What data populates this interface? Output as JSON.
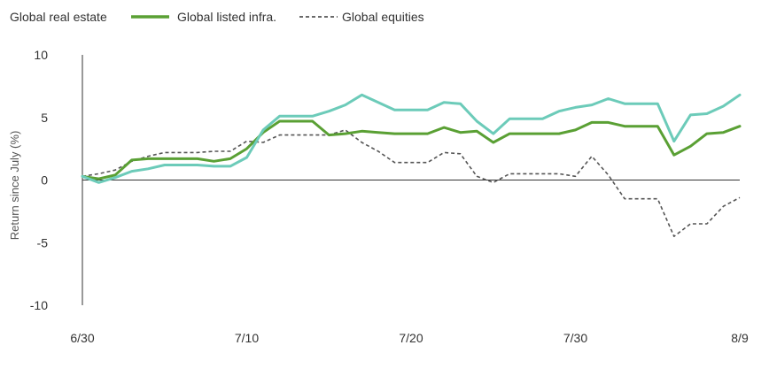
{
  "chart_data": {
    "type": "line",
    "ylabel": "Return since July (%)",
    "ylim": [
      -10,
      10
    ],
    "yticks": [
      10,
      5,
      0,
      -5,
      -10
    ],
    "x_range": [
      "6/30",
      "8/9"
    ],
    "xticks": [
      "6/30",
      "7/10",
      "7/20",
      "7/30",
      "8/9"
    ],
    "legend_position": "top-left",
    "grid": false,
    "zero_line": true,
    "x": [
      "6/30",
      "7/1",
      "7/2",
      "7/3",
      "7/4",
      "7/5",
      "7/6",
      "7/7",
      "7/8",
      "7/9",
      "7/10",
      "7/11",
      "7/12",
      "7/13",
      "7/14",
      "7/15",
      "7/16",
      "7/17",
      "7/18",
      "7/19",
      "7/20",
      "7/21",
      "7/22",
      "7/23",
      "7/24",
      "7/25",
      "7/26",
      "7/27",
      "7/28",
      "7/29",
      "7/30",
      "7/31",
      "8/1",
      "8/2",
      "8/3",
      "8/4",
      "8/5",
      "8/6",
      "8/7",
      "8/8",
      "8/9"
    ],
    "series": [
      {
        "name": "Global real estate",
        "color": "#6ccbb9",
        "dash": "solid",
        "values": [
          0.3,
          -0.2,
          0.2,
          0.7,
          0.9,
          1.2,
          1.2,
          1.2,
          1.1,
          1.1,
          1.8,
          4.0,
          5.1,
          5.1,
          5.1,
          5.5,
          6.0,
          6.8,
          6.2,
          5.6,
          5.6,
          5.6,
          6.2,
          6.1,
          4.7,
          3.7,
          4.9,
          4.9,
          4.9,
          5.5,
          5.8,
          6.0,
          6.5,
          6.1,
          6.1,
          6.1,
          3.1,
          5.2,
          5.3,
          5.9,
          6.8
        ]
      },
      {
        "name": "Global listed infra.",
        "color": "#5aa034",
        "dash": "solid",
        "values": [
          0.3,
          0.1,
          0.4,
          1.6,
          1.7,
          1.7,
          1.7,
          1.7,
          1.5,
          1.7,
          2.5,
          3.8,
          4.7,
          4.7,
          4.7,
          3.6,
          3.7,
          3.9,
          3.8,
          3.7,
          3.7,
          3.7,
          4.2,
          3.8,
          3.9,
          3.0,
          3.7,
          3.7,
          3.7,
          3.7,
          4.0,
          4.6,
          4.6,
          4.3,
          4.3,
          4.3,
          2.0,
          2.7,
          3.7,
          3.8,
          4.3
        ]
      },
      {
        "name": "Global equities",
        "color": "#555555",
        "dash": "dashed",
        "values": [
          0.3,
          0.5,
          0.8,
          1.5,
          1.9,
          2.2,
          2.2,
          2.2,
          2.3,
          2.3,
          3.1,
          3.0,
          3.6,
          3.6,
          3.6,
          3.6,
          4.0,
          3.0,
          2.3,
          1.4,
          1.4,
          1.4,
          2.2,
          2.1,
          0.3,
          -0.2,
          0.5,
          0.5,
          0.5,
          0.5,
          0.3,
          1.9,
          0.4,
          -1.5,
          -1.5,
          -1.5,
          -4.5,
          -3.5,
          -3.5,
          -2.1,
          -1.4
        ]
      }
    ]
  }
}
